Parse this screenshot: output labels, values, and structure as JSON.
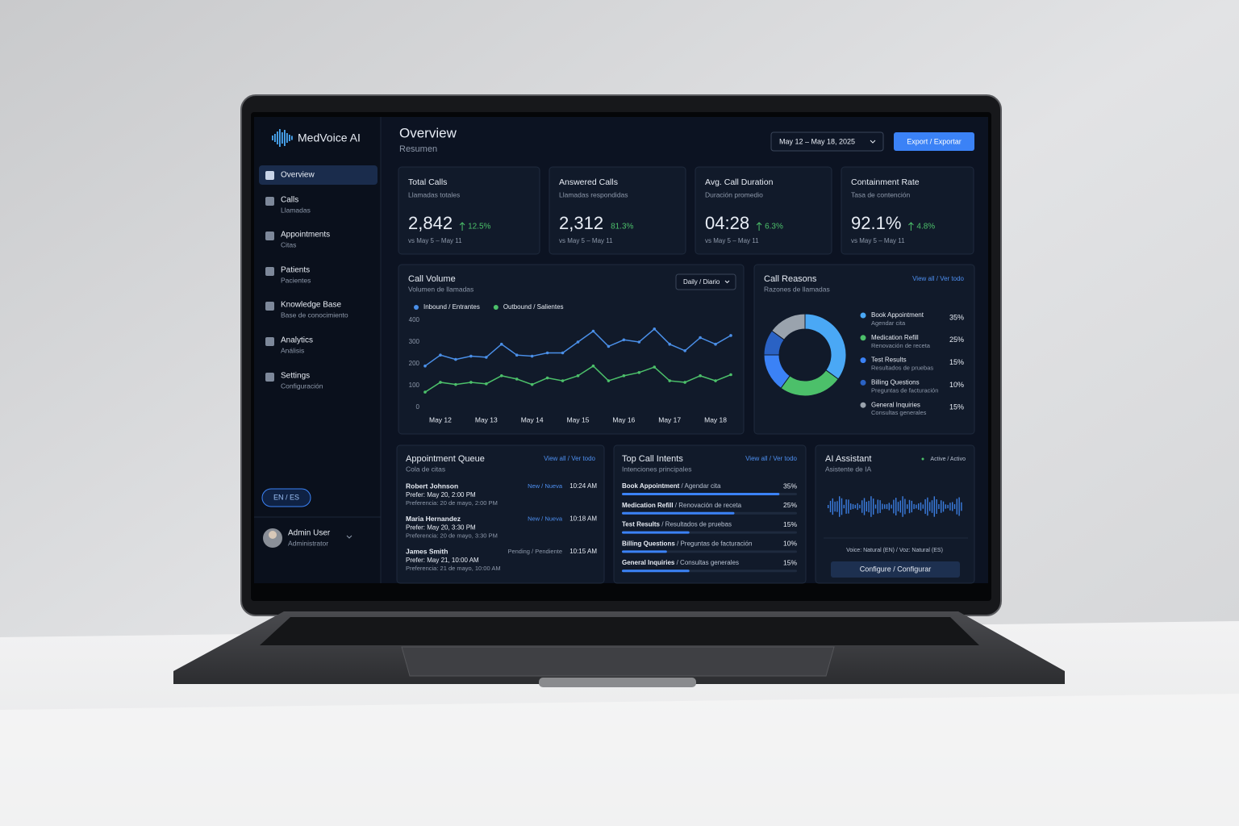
{
  "brand": "MedVoice AI",
  "nav": [
    {
      "label": "Overview"
    },
    {
      "label": "Calls",
      "sub": "Llamadas"
    },
    {
      "label": "Appointments",
      "sub": "Citas"
    },
    {
      "label": "Patients",
      "sub": "Pacientes"
    },
    {
      "label": "Knowledge Base",
      "sub": "Base de conocimiento"
    },
    {
      "label": "Analytics",
      "sub": "Análisis"
    },
    {
      "label": "Settings",
      "sub": "Configuración"
    }
  ],
  "language": "EN / ES",
  "user": {
    "name": "Admin User",
    "role": "Administrator"
  },
  "header": {
    "title": "Overview",
    "subtitle": "Resumen",
    "date_range": "May 12 – May 18, 2025",
    "export": "Export / Exportar"
  },
  "kpis": [
    {
      "title": "Total Calls",
      "subtitle": "Llamadas totales",
      "value": "2,842",
      "change": "12.5%",
      "trend": "up",
      "compare": "vs May 5 – May 11"
    },
    {
      "title": "Answered Calls",
      "subtitle": "Llamadas respondidas",
      "value": "2,312",
      "change": "81.3%",
      "compare": "vs May 5 – May 11"
    },
    {
      "title": "Avg. Call Duration",
      "subtitle": "Duración promedio",
      "value": "04:28",
      "change": "6.3%",
      "trend": "up",
      "compare": "vs May 5 – May 11"
    },
    {
      "title": "Containment Rate",
      "subtitle": "Tasa de contención",
      "value": "92.1%",
      "change": "4.8%",
      "trend": "up",
      "compare": "vs May 5 – May 11"
    }
  ],
  "chart_data": [
    {
      "type": "line",
      "title": "Call Volume",
      "subtitle": "Volumen de llamadas",
      "control": "Daily / Diario",
      "categories": [
        null,
        "May 12",
        null,
        null,
        "May 13",
        null,
        null,
        "May 14",
        null,
        null,
        "May 15",
        null,
        null,
        "May 16",
        null,
        null,
        "May 17",
        null,
        null,
        "May 18",
        null
      ],
      "series": [
        {
          "name": "Inbound / Entrantes",
          "color": "#4a8fe8",
          "values": [
            190,
            240,
            220,
            235,
            230,
            290,
            240,
            235,
            250,
            250,
            300,
            350,
            280,
            310,
            300,
            360,
            290,
            260,
            320,
            290,
            330
          ]
        },
        {
          "name": "Outbound / Salientes",
          "color": "#4cc06a",
          "values": [
            70,
            115,
            105,
            115,
            108,
            145,
            130,
            105,
            135,
            122,
            145,
            190,
            122,
            145,
            160,
            185,
            122,
            115,
            145,
            122,
            150
          ]
        }
      ],
      "ylim": [
        0,
        400
      ],
      "yticks": [
        0,
        100,
        200,
        300,
        400
      ]
    },
    {
      "type": "pie",
      "title": "Call Reasons",
      "subtitle": "Razones de llamadas",
      "link": "View all / Ver todo",
      "categories": [
        "Book Appointment",
        "Medication Refill",
        "Test Results",
        "Billing Questions",
        "General Inquiries"
      ],
      "subcategories": [
        "Agendar cita",
        "Renovación de receta",
        "Resultados de pruebas",
        "Preguntas de facturación",
        "Consultas generales"
      ],
      "values": [
        35,
        25,
        15,
        10,
        15
      ],
      "value_labels": [
        "35%",
        "25%",
        "15%",
        "10%",
        "15%"
      ],
      "colors": [
        "#4aa8f5",
        "#4cc06a",
        "#3b82f6",
        "#2a62c4",
        "#9aa3ad"
      ]
    },
    {
      "type": "bar",
      "orientation": "horizontal",
      "title": "Top Call Intents",
      "subtitle": "Intenciones principales",
      "link": "View all / Ver todo",
      "categories": [
        "Book Appointment",
        "Medication Refill",
        "Test Results",
        "Billing Questions",
        "General Inquiries"
      ],
      "subcategories": [
        "/ Agendar cita",
        "/ Renovación de receta",
        "/ Resultados de pruebas",
        "/ Preguntas de facturación",
        "/ Consultas generales"
      ],
      "values": [
        35,
        25,
        15,
        10,
        15
      ],
      "value_labels": [
        "35%",
        "25%",
        "15%",
        "10%",
        "15%"
      ],
      "color": "#3b82f6"
    }
  ],
  "appointments": {
    "title": "Appointment Queue",
    "subtitle": "Cola de citas",
    "view_all": "View all / Ver todo",
    "items": [
      {
        "name": "Robert Johnson",
        "prefer": "Prefer: May 20, 2:00 PM",
        "preference": "Preferencia: 20 de mayo, 2:00 PM",
        "status": "New / Nueva",
        "time": "10:24 AM"
      },
      {
        "name": "Maria Hernandez",
        "prefer": "Prefer: May 20, 3:30 PM",
        "preference": "Preferencia: 20 de mayo, 3:30 PM",
        "status": "New / Nueva",
        "time": "10:18 AM"
      },
      {
        "name": "James Smith",
        "prefer": "Prefer: May 21, 10:00 AM",
        "preference": "Preferencia: 21 de mayo, 10:00 AM",
        "status": "Pending / Pendiente",
        "time": "10:15 AM"
      }
    ]
  },
  "assistant": {
    "title": "AI Assistant",
    "subtitle": "Asistente de IA",
    "status": "Active / Activo",
    "voice": "Voice: Natural (EN) / Voz: Natural (ES)",
    "button": "Configure / Configurar"
  }
}
